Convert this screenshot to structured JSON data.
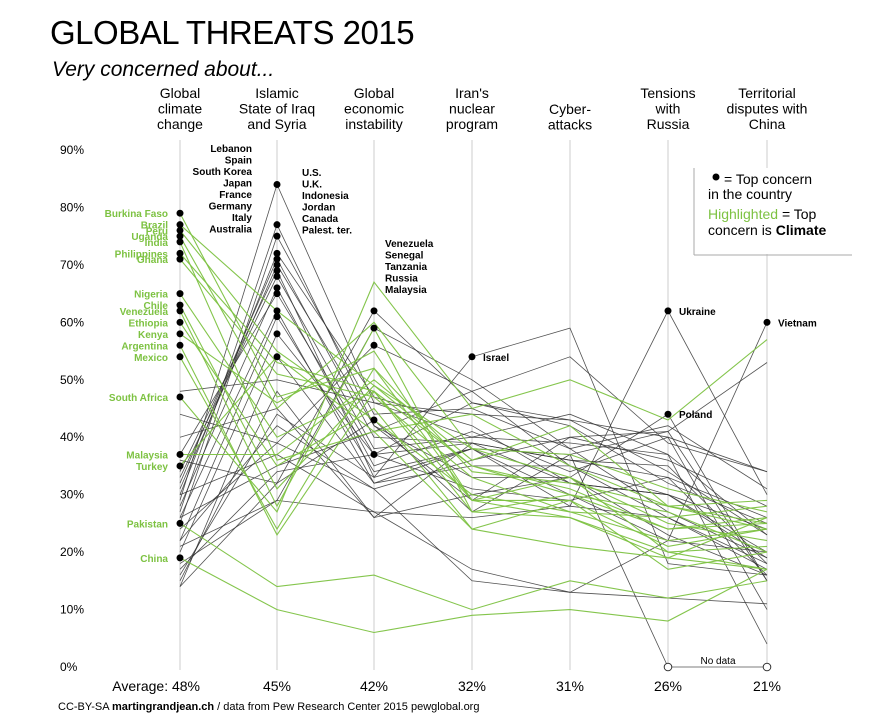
{
  "title": "GLOBAL THREATS 2015",
  "subtitle": "Very concerned about...",
  "credit_prefix": "CC-BY-SA ",
  "credit_site": "martingrandjean.ch",
  "credit_suffix": " / data from Pew Research Center 2015 pewglobal.org",
  "average_prefix": "Average: ",
  "legend": {
    "line1": "= Top concern",
    "line2": "in the country",
    "line3_green": "Highlighted",
    "line3_rest": " = Top",
    "line4_prefix": "concern is ",
    "line4_bold": "Climate"
  },
  "colors": {
    "climate": "#7dc242",
    "other": "#333333",
    "grid": "#cccccc"
  },
  "chart_data": {
    "type": "line",
    "chart_kind": "parallel-coordinates",
    "categories": [
      [
        "Global",
        "climate",
        "change"
      ],
      [
        "Islamic",
        "State of Iraq",
        "and Syria"
      ],
      [
        "Global",
        "economic",
        "instability"
      ],
      [
        "Iran's",
        "nuclear",
        "program"
      ],
      [
        "Cyber-",
        "attacks"
      ],
      [
        "Tensions",
        "with",
        "Russia"
      ],
      [
        "Territorial",
        "disputes with",
        "China"
      ]
    ],
    "averages": [
      "48%",
      "45%",
      "42%",
      "32%",
      "31%",
      "26%",
      "21%"
    ],
    "y_ticks": [
      "0%",
      "10%",
      "20%",
      "30%",
      "40%",
      "50%",
      "60%",
      "70%",
      "80%",
      "90%"
    ],
    "ylim": [
      0,
      90
    ],
    "grid": true,
    "no_data_label": "No data",
    "top_concern_groups": [
      {
        "axis": 0,
        "labels": [
          "Burkina Faso",
          "Brazil",
          "Peru",
          "Uganda",
          "India",
          "Philippines",
          "Ghana",
          "Nigeria",
          "Chile",
          "Venezuela",
          "Ethiopia",
          "Kenya",
          "Argentina",
          "Mexico",
          "South Africa",
          "Malaysia",
          "Turkey",
          "Pakistan",
          "China"
        ],
        "values": [
          79,
          77,
          76,
          75,
          74,
          72,
          71,
          65,
          63,
          62,
          60,
          58,
          56,
          54,
          47,
          37,
          35,
          25,
          19
        ],
        "color": "climate"
      },
      {
        "axis": 1,
        "labels": [
          "Lebanon",
          "Spain",
          "South Korea",
          "Japan",
          "France",
          "Germany",
          "Italy",
          "Australia"
        ],
        "values": [
          84,
          77,
          75,
          72,
          71,
          69,
          66,
          62
        ],
        "color": "other"
      },
      {
        "axis": 1,
        "labels": [
          "U.S.",
          "U.K.",
          "Indonesia",
          "Jordan",
          "Canada",
          "Palest. ter."
        ],
        "values": [
          68,
          65,
          61,
          58,
          54,
          70
        ],
        "color": "other"
      },
      {
        "axis": 2,
        "labels": [
          "Venezuela",
          "Senegal",
          "Tanzania",
          "Russia",
          "Malaysia"
        ],
        "values": [
          62,
          59,
          56,
          43,
          37
        ],
        "color": "other"
      },
      {
        "axis": 3,
        "labels": [
          "Israel"
        ],
        "values": [
          54
        ],
        "color": "other"
      },
      {
        "axis": 5,
        "labels": [
          "Ukraine",
          "Poland"
        ],
        "values": [
          62,
          44
        ],
        "color": "other"
      },
      {
        "axis": 6,
        "labels": [
          "Vietnam"
        ],
        "values": [
          60
        ],
        "color": "other"
      }
    ],
    "series": [
      {
        "color": "climate",
        "values": [
          79,
          47,
          52,
          29,
          29,
          17,
          20
        ]
      },
      {
        "color": "climate",
        "values": [
          77,
          62,
          49,
          35,
          31,
          24,
          25
        ]
      },
      {
        "color": "climate",
        "values": [
          76,
          55,
          43,
          30,
          27,
          22,
          24
        ]
      },
      {
        "color": "climate",
        "values": [
          75,
          45,
          60,
          38,
          33,
          20,
          17
        ]
      },
      {
        "color": "climate",
        "values": [
          74,
          36,
          41,
          24,
          29,
          21,
          24
        ]
      },
      {
        "color": "climate",
        "values": [
          72,
          53,
          48,
          35,
          30,
          24,
          26
        ]
      },
      {
        "color": "climate",
        "values": [
          71,
          51,
          47,
          33,
          27,
          26,
          28
        ]
      },
      {
        "color": "climate",
        "values": [
          65,
          40,
          48,
          29,
          26,
          19,
          26
        ]
      },
      {
        "color": "climate",
        "values": [
          63,
          31,
          49,
          38,
          37,
          31,
          27
        ]
      },
      {
        "color": "climate",
        "values": [
          62,
          28,
          59,
          27,
          30,
          27,
          20
        ]
      },
      {
        "color": "climate",
        "values": [
          60,
          35,
          45,
          24,
          21,
          19,
          17
        ]
      },
      {
        "color": "climate",
        "values": [
          58,
          46,
          55,
          29,
          33,
          25,
          22
        ]
      },
      {
        "color": "climate",
        "values": [
          56,
          23,
          48,
          27,
          26,
          20,
          21
        ]
      },
      {
        "color": "climate",
        "values": [
          54,
          24,
          52,
          34,
          32,
          28,
          24
        ]
      },
      {
        "color": "climate",
        "values": [
          47,
          27,
          67,
          45,
          50,
          43,
          57
        ]
      },
      {
        "color": "climate",
        "values": [
          37,
          37,
          50,
          36,
          42,
          28,
          29
        ]
      },
      {
        "color": "climate",
        "values": [
          35,
          54,
          41,
          44,
          35,
          28,
          25
        ]
      },
      {
        "color": "climate",
        "values": [
          25,
          14,
          16,
          10,
          15,
          12,
          15
        ]
      },
      {
        "color": "climate",
        "values": [
          19,
          10,
          6,
          9,
          10,
          8,
          17
        ]
      },
      {
        "color": "other",
        "values": [
          29,
          84,
          46,
          44,
          43,
          40,
          34
        ]
      },
      {
        "color": "other",
        "values": [
          27,
          77,
          42,
          33,
          33,
          23,
          16
        ]
      },
      {
        "color": "other",
        "values": [
          25,
          75,
          44,
          45,
          38,
          42,
          31
        ]
      },
      {
        "color": "other",
        "values": [
          30,
          72,
          47,
          42,
          32,
          30,
          24
        ]
      },
      {
        "color": "other",
        "values": [
          32,
          71,
          40,
          39,
          36,
          33,
          26
        ]
      },
      {
        "color": "other",
        "values": [
          34,
          69,
          33,
          38,
          30,
          22,
          20
        ]
      },
      {
        "color": "other",
        "values": [
          28,
          66,
          35,
          41,
          34,
          40,
          10
        ]
      },
      {
        "color": "other",
        "values": [
          26,
          62,
          32,
          38,
          37,
          41,
          15
        ]
      },
      {
        "color": "other",
        "values": [
          33,
          68,
          38,
          40,
          39,
          37,
          23
        ]
      },
      {
        "color": "other",
        "values": [
          37,
          65,
          37,
          39,
          32,
          30,
          20
        ]
      },
      {
        "color": "other",
        "values": [
          22,
          61,
          34,
          38,
          28,
          26,
          18
        ]
      },
      {
        "color": "other",
        "values": [
          20,
          58,
          37,
          46,
          42,
          32,
          25
        ]
      },
      {
        "color": "other",
        "values": [
          14,
          54,
          32,
          35,
          35,
          30,
          19
        ]
      },
      {
        "color": "other",
        "values": [
          31,
          70,
          42,
          29,
          40,
          36,
          28
        ]
      },
      {
        "color": "other",
        "values": [
          14,
          32,
          62,
          46,
          43,
          34,
          23
        ]
      },
      {
        "color": "other",
        "values": [
          21,
          29,
          59,
          50,
          38,
          27,
          19
        ]
      },
      {
        "color": "other",
        "values": [
          24,
          39,
          56,
          48,
          35,
          26,
          17
        ]
      },
      {
        "color": "other",
        "values": [
          36,
          32,
          43,
          27,
          37,
          0,
          0
        ]
      },
      {
        "color": "other",
        "values": [
          17,
          34,
          37,
          31,
          29,
          33,
          16
        ]
      },
      {
        "color": "other",
        "values": [
          16,
          44,
          33,
          54,
          59,
          18,
          16
        ]
      },
      {
        "color": "other",
        "values": [
          30,
          37,
          27,
          26,
          28,
          62,
          30
        ]
      },
      {
        "color": "other",
        "values": [
          40,
          45,
          26,
          30,
          33,
          44,
          15
        ]
      },
      {
        "color": "other",
        "values": [
          18,
          29,
          27,
          17,
          13,
          22,
          60
        ]
      },
      {
        "color": "other",
        "values": [
          22,
          42,
          31,
          36,
          40,
          41,
          53
        ]
      },
      {
        "color": "other",
        "values": [
          15,
          48,
          26,
          39,
          36,
          35,
          18
        ]
      },
      {
        "color": "other",
        "values": [
          26,
          35,
          41,
          48,
          54,
          39,
          34
        ]
      },
      {
        "color": "other",
        "values": [
          48,
          50,
          46,
          40,
          44,
          37,
          4
        ]
      },
      {
        "color": "other",
        "values": [
          44,
          39,
          31,
          15,
          13,
          12,
          11
        ]
      }
    ]
  }
}
